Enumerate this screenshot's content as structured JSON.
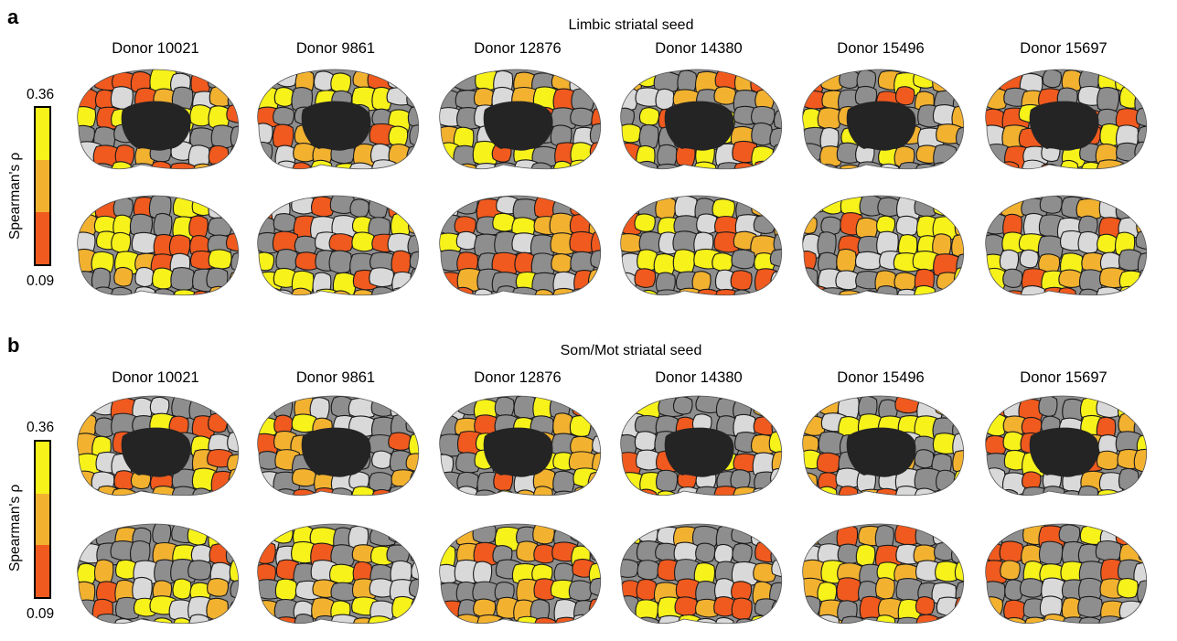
{
  "panels": [
    {
      "letter": "a",
      "title": "Limbic striatal seed",
      "donors": [
        "Donor 10021",
        "Donor 9861",
        "Donor 12876",
        "Donor 14380",
        "Donor 15496",
        "Donor 15697"
      ],
      "colorbar": {
        "label": "Spearman's ρ",
        "max": "0.36",
        "min": "0.09"
      }
    },
    {
      "letter": "b",
      "title": "Som/Mot striatal seed",
      "donors": [
        "Donor 10021",
        "Donor 9861",
        "Donor 12876",
        "Donor 14380",
        "Donor 15496",
        "Donor 15697"
      ],
      "colorbar": {
        "label": "Spearman's ρ",
        "max": "0.36",
        "min": "0.09"
      }
    }
  ],
  "colors": {
    "high": "#f7f21a",
    "mid": "#f2b230",
    "low": "#f05a1e",
    "cortex": "#8e8e8e",
    "cortex_light": "#d9d9d9",
    "medial_wall": "#242424"
  }
}
